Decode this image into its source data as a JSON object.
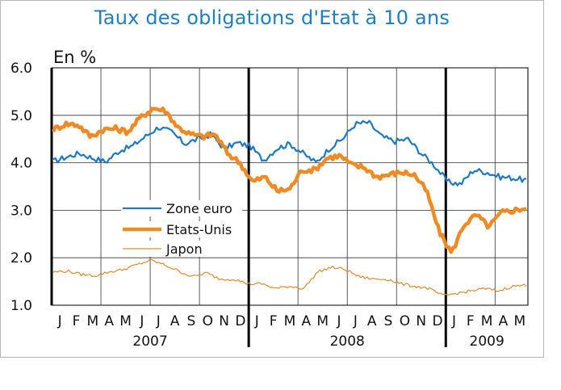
{
  "chart_data": {
    "type": "line",
    "title": "Taux des obligations d'Etat à 10 ans",
    "unit_label": "En %",
    "ylim": [
      1.0,
      6.0
    ],
    "y_ticks": [
      "6.0",
      "5.0",
      "4.0",
      "3.0",
      "2.0",
      "1.0"
    ],
    "x_ticks": [
      "J",
      "F",
      "M",
      "A",
      "M",
      "J",
      "J",
      "A",
      "S",
      "O",
      "N",
      "D",
      "J",
      "F",
      "M",
      "A",
      "M",
      "J",
      "J",
      "A",
      "S",
      "O",
      "N",
      "D",
      "J",
      "F",
      "M",
      "A",
      "M"
    ],
    "years": [
      "2007",
      "2008",
      "2009"
    ],
    "grid": true,
    "legend_position": "center-left",
    "series": [
      {
        "name": "Zone euro",
        "color": "#1f78c1",
        "values": [
          4.03,
          4.12,
          4.2,
          4.1,
          4.02,
          4.25,
          4.35,
          4.55,
          4.75,
          4.65,
          4.4,
          4.5,
          4.6,
          4.3,
          4.42,
          4.35,
          4.05,
          4.3,
          4.4,
          4.2,
          4.0,
          4.3,
          4.5,
          4.82,
          4.85,
          4.55,
          4.45,
          4.5,
          4.2,
          3.95,
          3.6,
          3.55,
          3.85,
          3.8,
          3.7,
          3.68,
          3.63
        ]
      },
      {
        "name": "Etats-Unis",
        "color": "#f08a24",
        "values": [
          4.7,
          4.82,
          4.8,
          4.55,
          4.7,
          4.72,
          4.65,
          4.95,
          5.15,
          5.1,
          4.75,
          4.6,
          4.55,
          4.6,
          4.2,
          4.0,
          3.6,
          3.7,
          3.4,
          3.45,
          3.85,
          3.85,
          4.1,
          4.15,
          3.95,
          3.9,
          3.7,
          3.75,
          3.8,
          3.75,
          3.4,
          2.55,
          2.1,
          2.7,
          2.9,
          2.65,
          2.95,
          3.0,
          3.05
        ]
      },
      {
        "name": "Japon",
        "color": "#e08a2e",
        "values": [
          1.7,
          1.72,
          1.65,
          1.62,
          1.7,
          1.75,
          1.85,
          1.95,
          1.85,
          1.72,
          1.6,
          1.68,
          1.55,
          1.55,
          1.45,
          1.45,
          1.35,
          1.4,
          1.35,
          1.7,
          1.8,
          1.75,
          1.6,
          1.55,
          1.55,
          1.45,
          1.4,
          1.35,
          1.2,
          1.25,
          1.3,
          1.35,
          1.3,
          1.4,
          1.42
        ]
      }
    ]
  }
}
